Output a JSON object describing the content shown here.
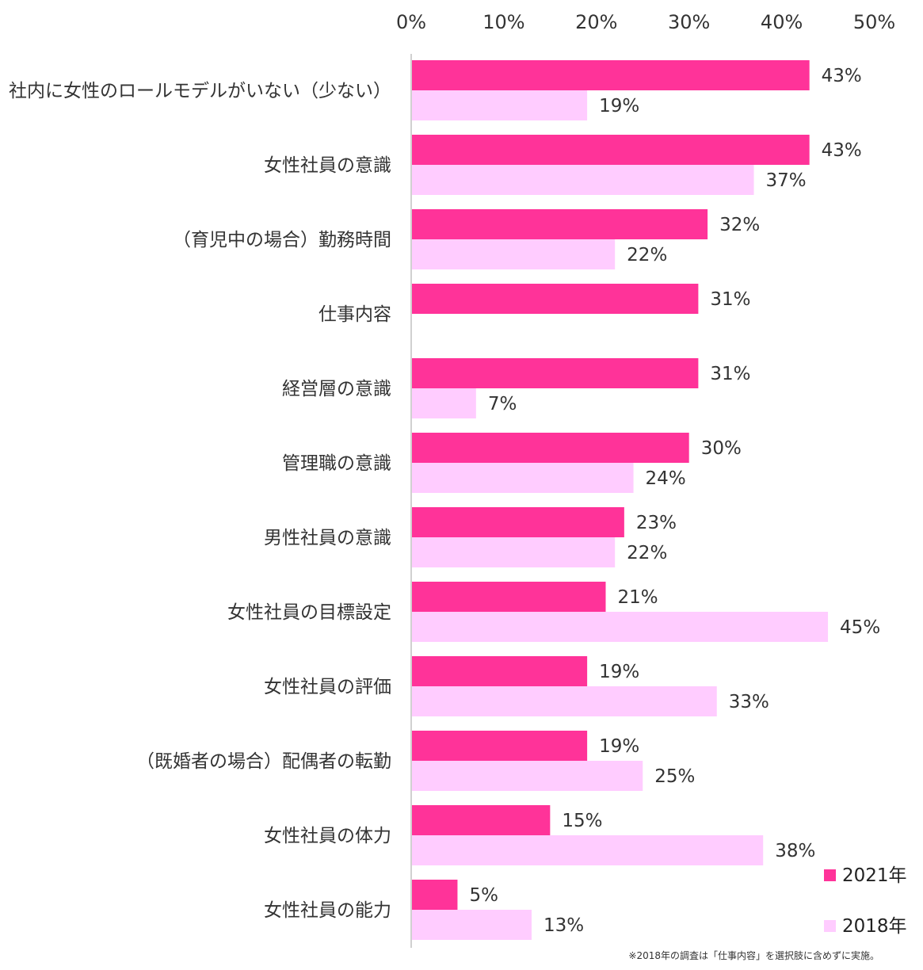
{
  "chart_data": {
    "type": "bar",
    "orientation": "horizontal",
    "categories": [
      "社内に女性のロールモデルがいない（少ない）",
      "女性社員の意識",
      "（育児中の場合）勤務時間",
      "仕事内容",
      "経営層の意識",
      "管理職の意識",
      "男性社員の意識",
      "女性社員の目標設定",
      "女性社員の評価",
      "（既婚者の場合）配偶者の転勤",
      "女性社員の体力",
      "女性社員の能力"
    ],
    "series": [
      {
        "name": "2021年",
        "color": "#ff3399",
        "values": [
          43,
          43,
          32,
          31,
          31,
          30,
          23,
          21,
          19,
          19,
          15,
          5
        ]
      },
      {
        "name": "2018年",
        "color": "#ffccff",
        "values": [
          19,
          37,
          22,
          null,
          7,
          24,
          22,
          45,
          33,
          25,
          38,
          13
        ]
      }
    ],
    "xlim": [
      0,
      50
    ],
    "xticks": [
      "0%",
      "10%",
      "20%",
      "30%",
      "40%",
      "50%"
    ],
    "value_suffix": "%",
    "axis_position": "top",
    "grid": false,
    "legend_position": "bottom-right",
    "note": "※2018年の調査は「仕事内容」を選択肢に含めずに実施。"
  }
}
